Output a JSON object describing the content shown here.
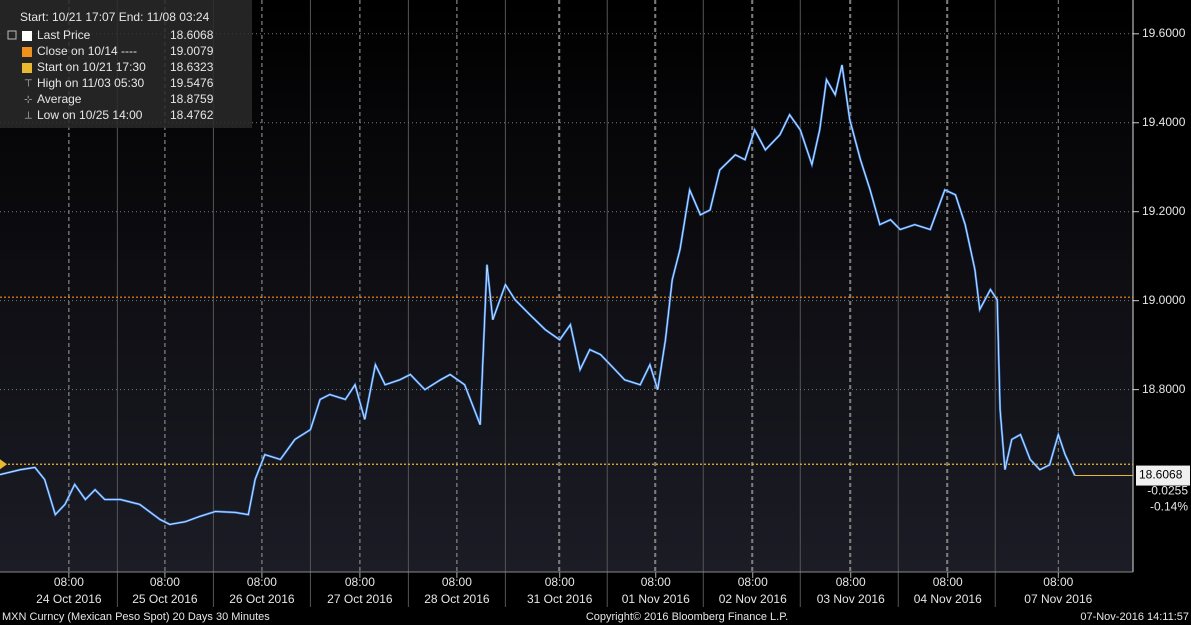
{
  "chart_data": {
    "type": "line",
    "header": "Start: 10/21 17:07 End: 11/08 03:24",
    "footer_left": "MXN Curncy (Mexican Peso Spot) 20 Days 30 Minutes",
    "footer_center": "Copyright© 2016 Bloomberg Finance L.P.",
    "footer_right": "07-Nov-2016 14:11:57",
    "legend": [
      {
        "name": "Last Price",
        "value": 18.6068,
        "color": "#ffffff"
      },
      {
        "name": "Close on 10/14 ----",
        "value": 19.0079,
        "color": "#f0901e"
      },
      {
        "name": "Start on 10/21 17:30",
        "value": 18.6323,
        "color": "#e8b830"
      },
      {
        "name": "High on 11/03 05:30",
        "value": 19.5476
      },
      {
        "name": "Average",
        "value": 18.8759
      },
      {
        "name": "Low on 10/25 14:00",
        "value": 18.4762
      }
    ],
    "last_change": -0.0255,
    "last_change_pct": {
      "value": -0.14,
      "label": "-0.14%"
    },
    "series": [
      {
        "name": "Last Price",
        "color": "#3a86e8",
        "x": [
          0,
          0.21,
          0.36,
          0.46,
          0.57,
          0.67,
          0.77,
          0.88,
          0.98,
          1.08,
          1.24,
          1.44,
          1.65,
          1.75,
          1.91,
          2.06,
          2.22,
          2.42,
          2.56,
          2.63,
          2.73,
          2.89,
          3.04,
          3.2,
          3.3,
          3.4,
          3.56,
          3.66,
          3.76,
          3.87,
          3.97,
          4.12,
          4.23,
          4.38,
          4.54,
          4.64,
          4.79,
          4.95,
          5.02,
          5.08,
          5.21,
          5.31,
          5.46,
          5.62,
          5.77,
          5.88,
          5.98,
          6.08,
          6.19,
          6.34,
          6.44,
          6.6,
          6.7,
          6.78,
          6.86,
          6.93,
          7.01,
          7.11,
          7.22,
          7.32,
          7.42,
          7.58,
          7.68,
          7.78,
          7.89,
          8.04,
          8.14,
          8.25,
          8.37,
          8.45,
          8.52,
          8.61,
          8.68,
          8.76,
          8.87,
          8.97,
          9.07,
          9.18,
          9.28,
          9.43,
          9.59,
          9.74,
          9.85,
          9.95,
          10.05,
          10.1,
          10.21,
          10.28,
          10.31,
          10.36,
          10.43,
          10.52,
          10.62,
          10.72,
          10.82,
          10.91,
          10.98,
          11.08
        ],
        "values": [
          18.609,
          18.62,
          18.625,
          18.598,
          18.519,
          18.542,
          18.587,
          18.553,
          18.575,
          18.553,
          18.553,
          18.542,
          18.508,
          18.497,
          18.503,
          18.515,
          18.526,
          18.524,
          18.519,
          18.598,
          18.654,
          18.643,
          18.688,
          18.71,
          18.778,
          18.789,
          18.778,
          18.811,
          18.733,
          18.856,
          18.811,
          18.822,
          18.834,
          18.8,
          18.822,
          18.834,
          18.811,
          18.721,
          19.081,
          18.957,
          19.036,
          19.002,
          18.969,
          18.935,
          18.912,
          18.946,
          18.845,
          18.89,
          18.879,
          18.845,
          18.822,
          18.811,
          18.856,
          18.8,
          18.912,
          19.047,
          19.115,
          19.249,
          19.193,
          19.204,
          19.294,
          19.328,
          19.317,
          19.384,
          19.339,
          19.373,
          19.418,
          19.384,
          19.306,
          19.384,
          19.497,
          19.463,
          19.53,
          19.407,
          19.317,
          19.249,
          19.171,
          19.182,
          19.16,
          19.171,
          19.16,
          19.249,
          19.238,
          19.171,
          19.07,
          18.98,
          19.025,
          19.002,
          18.755,
          18.62,
          18.688,
          18.699,
          18.643,
          18.62,
          18.631,
          18.699,
          18.654,
          18.607
        ]
      }
    ],
    "xlim": [
      0,
      11.68
    ],
    "ylim": [
      18.39,
      19.676
    ],
    "xticks": [
      {
        "value": 0.71,
        "label": "08:00"
      },
      {
        "value": 1.7,
        "label": "08:00"
      },
      {
        "value": 2.7,
        "label": "08:00"
      },
      {
        "value": 3.71,
        "label": "08:00"
      },
      {
        "value": 4.71,
        "label": "08:00"
      },
      {
        "value": 5.77,
        "label": "08:00"
      },
      {
        "value": 6.76,
        "label": "08:00"
      },
      {
        "value": 7.76,
        "label": "08:00"
      },
      {
        "value": 8.77,
        "label": "08:00"
      },
      {
        "value": 9.77,
        "label": "08:00"
      },
      {
        "value": 10.91,
        "label": "08:00"
      }
    ],
    "day_labels": [
      "24 Oct 2016",
      "25 Oct 2016",
      "26 Oct 2016",
      "27 Oct 2016",
      "28 Oct 2016",
      "31 Oct 2016",
      "01 Nov 2016",
      "02 Nov 2016",
      "03 Nov 2016",
      "04 Nov 2016",
      "07 Nov 2016"
    ],
    "day_boundaries": [
      1.21,
      2.2,
      3.2,
      4.21,
      5.21,
      6.26,
      7.25,
      8.25,
      9.26,
      10.26
    ],
    "yticks": [
      {
        "value": 18.8,
        "label": "18.8000"
      },
      {
        "value": 19.0,
        "label": "19.0000"
      },
      {
        "value": 19.2,
        "label": "19.2000"
      },
      {
        "value": 19.4,
        "label": "19.4000"
      },
      {
        "value": 19.6,
        "label": "19.6000"
      }
    ],
    "grid": true
  }
}
